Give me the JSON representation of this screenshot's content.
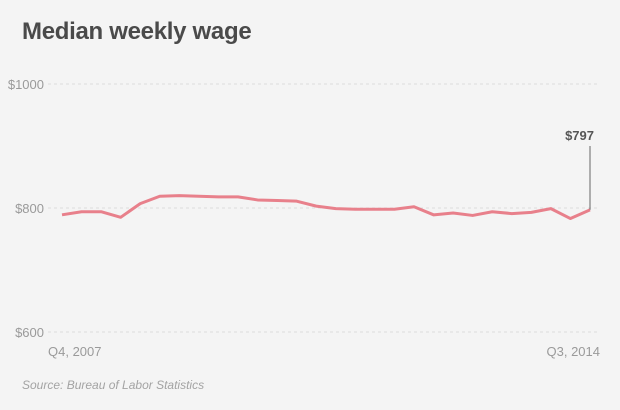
{
  "chart_data": {
    "type": "line",
    "title": "Median weekly wage",
    "source": "Source: Bureau of Labor Statistics",
    "x": [
      "Q4, 2007",
      "Q1, 2008",
      "Q2, 2008",
      "Q3, 2008",
      "Q4, 2008",
      "Q1, 2009",
      "Q2, 2009",
      "Q3, 2009",
      "Q4, 2009",
      "Q1, 2010",
      "Q2, 2010",
      "Q3, 2010",
      "Q4, 2010",
      "Q1, 2011",
      "Q2, 2011",
      "Q3, 2011",
      "Q4, 2011",
      "Q1, 2012",
      "Q2, 2012",
      "Q3, 2012",
      "Q4, 2012",
      "Q1, 2013",
      "Q2, 2013",
      "Q3, 2013",
      "Q4, 2013",
      "Q1, 2014",
      "Q2, 2014",
      "Q3, 2014"
    ],
    "values": [
      789,
      794,
      794,
      785,
      807,
      819,
      820,
      819,
      818,
      818,
      813,
      812,
      811,
      803,
      799,
      798,
      798,
      798,
      802,
      789,
      792,
      788,
      794,
      791,
      793,
      799,
      783,
      797
    ],
    "ylim": [
      600,
      1000
    ],
    "y_ticks": [
      "$600",
      "$800",
      "$1000"
    ],
    "y_tick_values": [
      600,
      800,
      1000
    ],
    "x_tick_labels": [
      "Q4, 2007",
      "Q3, 2014"
    ],
    "annotation": "$797",
    "grid": true,
    "line_color": "#e8808b"
  }
}
